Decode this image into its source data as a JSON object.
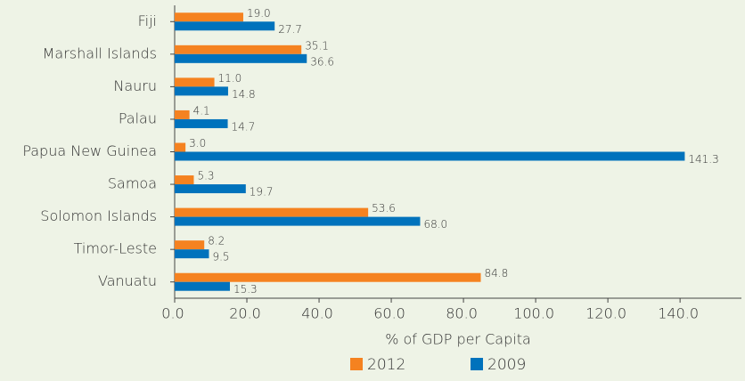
{
  "chart_data": {
    "type": "hbar",
    "categories": [
      "Fiji",
      "Marshall Islands",
      "Nauru",
      "Palau",
      "Papua New Guinea",
      "Samoa",
      "Solomon Islands",
      "Timor-Leste",
      "Vanuatu"
    ],
    "series": [
      {
        "name": "2012",
        "color": "#f58220",
        "values": [
          19.0,
          35.1,
          11.0,
          4.1,
          3.0,
          5.3,
          53.6,
          8.2,
          84.8
        ],
        "value_labels": [
          "19.0",
          "35.1",
          "11.0",
          "4.1",
          "3.0",
          "5.3",
          "53.6",
          "8.2",
          "84.8"
        ]
      },
      {
        "name": "2009",
        "color": "#0072bc",
        "values": [
          27.7,
          36.6,
          14.8,
          14.7,
          141.3,
          19.7,
          68.0,
          9.5,
          15.3
        ],
        "value_labels": [
          "27.7",
          "36.6",
          "14.8",
          "14.7",
          "141.3",
          "19.7",
          "68.0",
          "9.5",
          "15.3"
        ]
      }
    ],
    "x_label": "% of GDP per Capita",
    "xlim": [
      0,
      157
    ],
    "xticks": [
      {
        "value": 0,
        "label": "0.0"
      },
      {
        "value": 20,
        "label": "20.0"
      },
      {
        "value": 40,
        "label": "40.0"
      },
      {
        "value": 60,
        "label": "60.0"
      },
      {
        "value": 80,
        "label": "80.0"
      },
      {
        "value": 100,
        "label": "100.0"
      },
      {
        "value": 120,
        "label": "120.0"
      },
      {
        "value": 140,
        "label": "140.0"
      }
    ],
    "legend": "bottom"
  }
}
